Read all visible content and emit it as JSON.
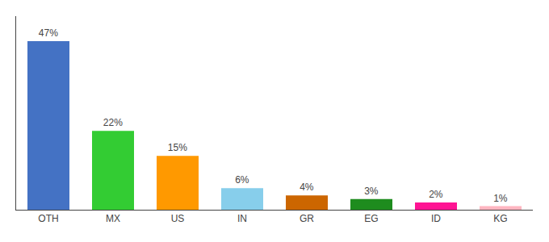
{
  "chart_data": {
    "type": "bar",
    "categories": [
      "OTH",
      "MX",
      "US",
      "IN",
      "GR",
      "EG",
      "ID",
      "KG"
    ],
    "values": [
      47,
      22,
      15,
      6,
      4,
      3,
      2,
      1
    ],
    "value_labels": [
      "47%",
      "22%",
      "15%",
      "6%",
      "4%",
      "3%",
      "2%",
      "1%"
    ],
    "colors": [
      "#4472C4",
      "#33CC33",
      "#FF9900",
      "#87CEEB",
      "#CC6600",
      "#1E8C1E",
      "#FF1493",
      "#FFB6C1"
    ],
    "ylim": [
      0,
      54
    ],
    "data_labels": true,
    "tick_labels": "x",
    "grid": false
  }
}
